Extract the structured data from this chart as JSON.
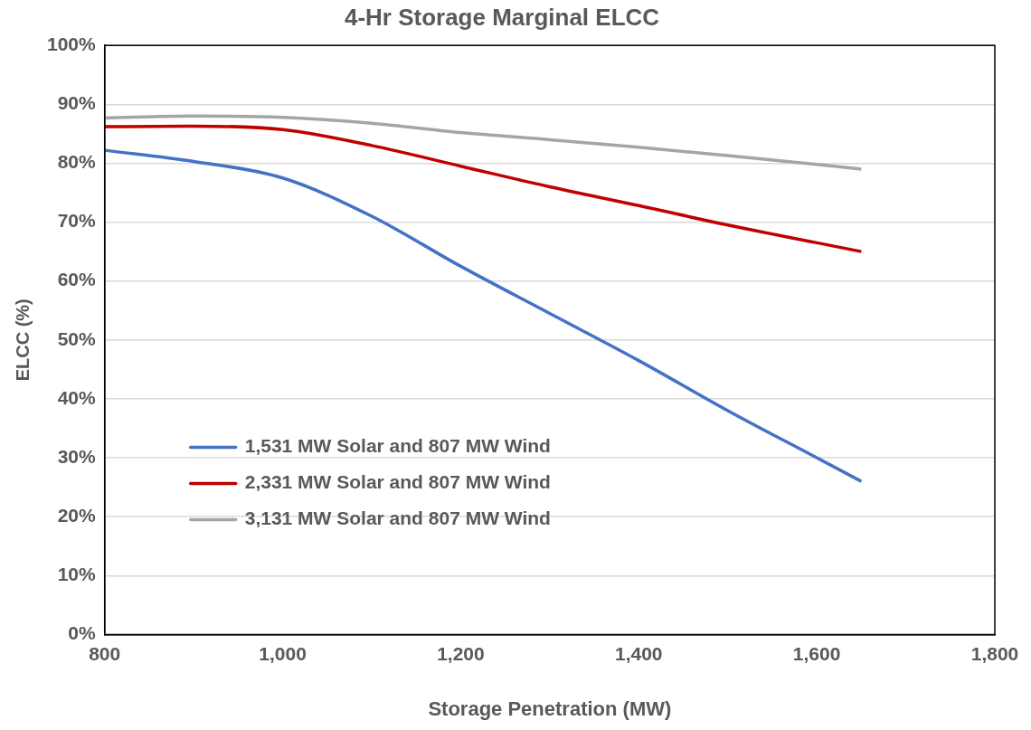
{
  "chart_data": {
    "type": "line",
    "title": "4-Hr Storage Marginal ELCC",
    "xlabel": "Storage Penetration (MW)",
    "ylabel": "ELCC (%)",
    "x": [
      800,
      900,
      1000,
      1100,
      1200,
      1300,
      1400,
      1500,
      1600,
      1650
    ],
    "series": [
      {
        "name": "1,531 MW Solar and 807 MW Wind",
        "color": "#4472c4",
        "values": [
          82.2,
          80.3,
          77.5,
          71,
          62.5,
          54.5,
          46.5,
          38,
          30,
          26
        ]
      },
      {
        "name": "2,331 MW Solar and 807 MW Wind",
        "color": "#c00000",
        "values": [
          86.2,
          86.3,
          85.7,
          83,
          79.5,
          76,
          72.8,
          69.5,
          66.5,
          65
        ]
      },
      {
        "name": "3,131 MW Solar and 807 MW Wind",
        "color": "#a5a5a5",
        "values": [
          87.7,
          88,
          87.8,
          86.8,
          85.2,
          84,
          82.7,
          81.3,
          79.8,
          79
        ]
      }
    ],
    "xlim": [
      800,
      1800
    ],
    "xticks": [
      {
        "value": 800,
        "label": "800"
      },
      {
        "value": 1000,
        "label": "1,000"
      },
      {
        "value": 1200,
        "label": "1,200"
      },
      {
        "value": 1400,
        "label": "1,400"
      },
      {
        "value": 1600,
        "label": "1,600"
      },
      {
        "value": 1800,
        "label": "1,800"
      }
    ],
    "ylim": [
      0,
      100
    ],
    "yticks": [
      {
        "value": 0,
        "label": "0%"
      },
      {
        "value": 10,
        "label": "10%"
      },
      {
        "value": 20,
        "label": "20%"
      },
      {
        "value": 30,
        "label": "30%"
      },
      {
        "value": 40,
        "label": "40%"
      },
      {
        "value": 50,
        "label": "50%"
      },
      {
        "value": 60,
        "label": "60%"
      },
      {
        "value": 70,
        "label": "70%"
      },
      {
        "value": 80,
        "label": "80%"
      },
      {
        "value": 90,
        "label": "90%"
      },
      {
        "value": 100,
        "label": "100%"
      }
    ],
    "grid": "y",
    "legend": "bottom left",
    "marker": "none",
    "line_style": "solid"
  }
}
